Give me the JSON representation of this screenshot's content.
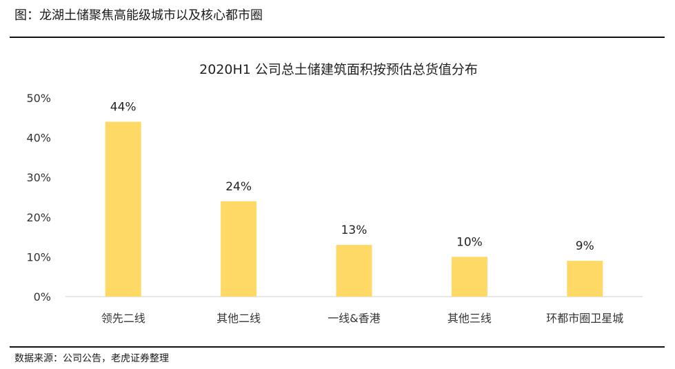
{
  "figure_title": "图：龙湖土储聚焦高能级城市以及核心都市圈",
  "source": "数据来源：公司公告，老虎证券整理",
  "chart_data": {
    "type": "bar",
    "title": "2020H1 公司总土储建筑面积按预估总货值分布",
    "xlabel": "",
    "ylabel": "",
    "categories": [
      "领先二线",
      "其他二线",
      "一线&香港",
      "其他三线",
      "环都市圈卫星城"
    ],
    "values": [
      44,
      24,
      13,
      10,
      9
    ],
    "data_labels": [
      "44%",
      "24%",
      "13%",
      "10%",
      "9%"
    ],
    "ylim": [
      0,
      50
    ],
    "yticks": [
      0,
      10,
      20,
      30,
      40,
      50
    ],
    "ytick_labels": [
      "0%",
      "10%",
      "20%",
      "30%",
      "40%",
      "50%"
    ],
    "grid": false,
    "bar_color": "#FFD966"
  }
}
